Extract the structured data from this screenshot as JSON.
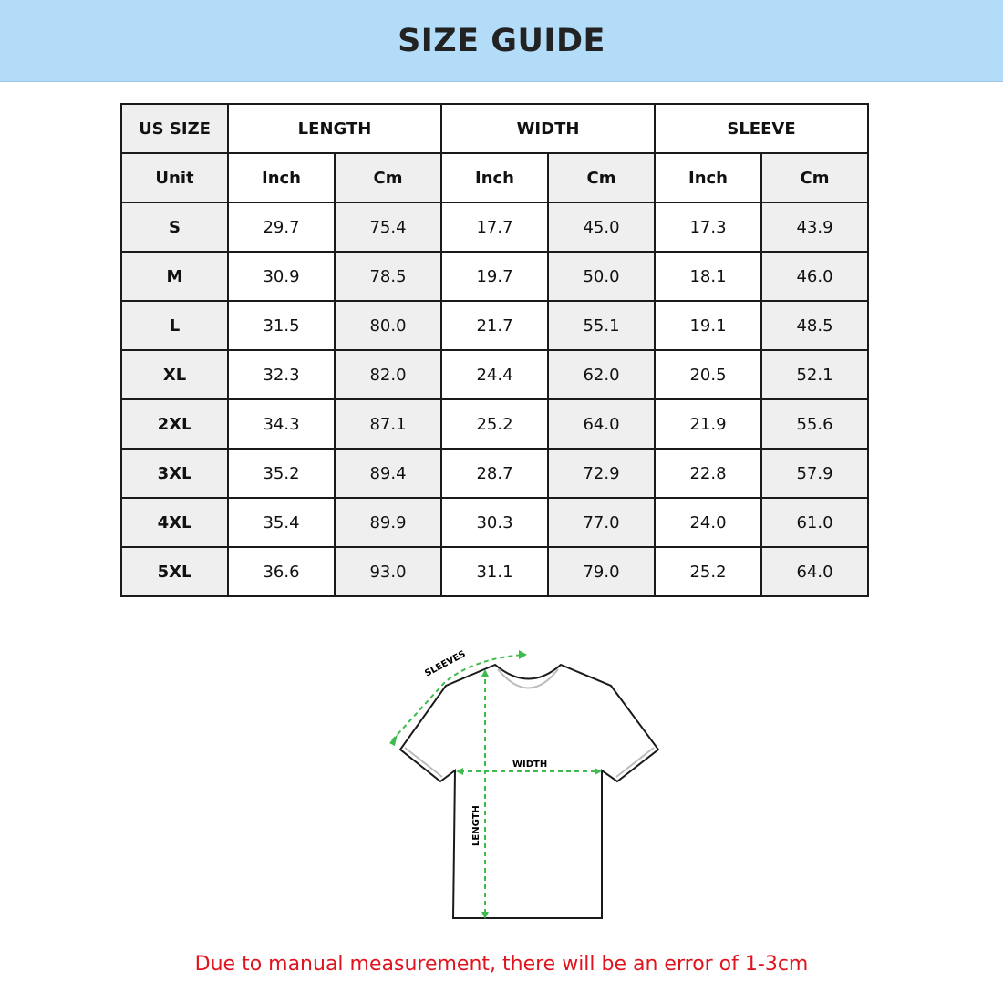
{
  "header": {
    "title": "SIZE GUIDE"
  },
  "table": {
    "group_headers": [
      "US SIZE",
      "LENGTH",
      "WIDTH",
      "SLEEVE"
    ],
    "unit_row": [
      "Unit",
      "Inch",
      "Cm",
      "Inch",
      "Cm",
      "Inch",
      "Cm"
    ],
    "rows": [
      [
        "S",
        "29.7",
        "75.4",
        "17.7",
        "45.0",
        "17.3",
        "43.9"
      ],
      [
        "M",
        "30.9",
        "78.5",
        "19.7",
        "50.0",
        "18.1",
        "46.0"
      ],
      [
        "L",
        "31.5",
        "80.0",
        "21.7",
        "55.1",
        "19.1",
        "48.5"
      ],
      [
        "XL",
        "32.3",
        "82.0",
        "24.4",
        "62.0",
        "20.5",
        "52.1"
      ],
      [
        "2XL",
        "34.3",
        "87.1",
        "25.2",
        "64.0",
        "21.9",
        "55.6"
      ],
      [
        "3XL",
        "35.2",
        "89.4",
        "28.7",
        "72.9",
        "22.8",
        "57.9"
      ],
      [
        "4XL",
        "35.4",
        "89.9",
        "30.3",
        "77.0",
        "24.0",
        "61.0"
      ],
      [
        "5XL",
        "36.6",
        "93.0",
        "31.1",
        "79.0",
        "25.2",
        "64.0"
      ]
    ]
  },
  "diagram": {
    "labels": {
      "sleeves": "SLEEVES",
      "width": "WIDTH",
      "length": "LENGTH"
    },
    "measure_color": "#3dbb4f"
  },
  "note": "Due to manual measurement, there will be an error of 1-3cm",
  "colors": {
    "banner": "#b3dcf9",
    "note": "#e0141e"
  }
}
